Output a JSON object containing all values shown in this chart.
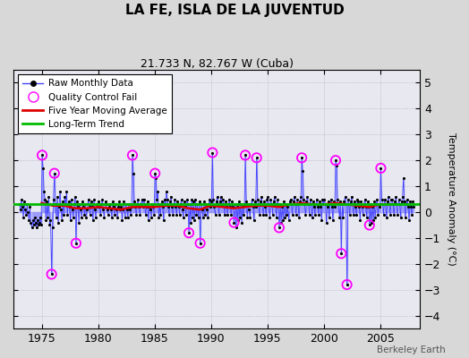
{
  "title": "LA FE, ISLA DE LA JUVENTUD",
  "subtitle": "21.733 N, 82.767 W (Cuba)",
  "ylabel": "Temperature Anomaly (°C)",
  "watermark": "Berkeley Earth",
  "ylim": [
    -4.5,
    5.5
  ],
  "xlim": [
    1972.5,
    2008.5
  ],
  "yticks": [
    -4,
    -3,
    -2,
    -1,
    0,
    1,
    2,
    3,
    4,
    5
  ],
  "xticks": [
    1975,
    1980,
    1985,
    1990,
    1995,
    2000,
    2005
  ],
  "bg_color": "#d8d8d8",
  "plot_bg": "#e8e8f0",
  "raw_color": "#4444ff",
  "raw_fill": "#8888ff",
  "qc_color": "#ff00ff",
  "ma_color": "#dd0000",
  "trend_color": "#00bb00",
  "raw_data": [
    [
      1973.04,
      0.3
    ],
    [
      1973.13,
      0.1
    ],
    [
      1973.21,
      0.5
    ],
    [
      1973.29,
      0.2
    ],
    [
      1973.38,
      -0.2
    ],
    [
      1973.46,
      0.4
    ],
    [
      1973.54,
      0.1
    ],
    [
      1973.63,
      -0.1
    ],
    [
      1973.71,
      0.3
    ],
    [
      1973.79,
      0.0
    ],
    [
      1973.88,
      -0.3
    ],
    [
      1973.96,
      0.2
    ],
    [
      1974.04,
      -0.4
    ],
    [
      1974.13,
      -0.6
    ],
    [
      1974.21,
      -0.3
    ],
    [
      1974.29,
      -0.5
    ],
    [
      1974.38,
      -0.2
    ],
    [
      1974.46,
      -0.4
    ],
    [
      1974.54,
      -0.6
    ],
    [
      1974.63,
      -0.3
    ],
    [
      1974.71,
      -0.5
    ],
    [
      1974.79,
      -0.4
    ],
    [
      1974.88,
      -0.2
    ],
    [
      1974.96,
      -0.5
    ],
    [
      1975.04,
      2.2
    ],
    [
      1975.13,
      1.7
    ],
    [
      1975.21,
      0.8
    ],
    [
      1975.29,
      0.5
    ],
    [
      1975.38,
      -0.3
    ],
    [
      1975.46,
      0.4
    ],
    [
      1975.54,
      -0.2
    ],
    [
      1975.63,
      0.6
    ],
    [
      1975.71,
      -0.5
    ],
    [
      1975.79,
      -0.3
    ],
    [
      1975.88,
      -2.4
    ],
    [
      1975.96,
      -0.6
    ],
    [
      1976.04,
      0.5
    ],
    [
      1976.13,
      1.5
    ],
    [
      1976.21,
      0.3
    ],
    [
      1976.29,
      -0.2
    ],
    [
      1976.38,
      0.6
    ],
    [
      1976.46,
      -0.4
    ],
    [
      1976.54,
      0.2
    ],
    [
      1976.63,
      0.8
    ],
    [
      1976.71,
      0.1
    ],
    [
      1976.79,
      -0.3
    ],
    [
      1976.88,
      0.4
    ],
    [
      1976.96,
      -0.1
    ],
    [
      1977.04,
      0.6
    ],
    [
      1977.13,
      0.3
    ],
    [
      1977.21,
      0.8
    ],
    [
      1977.29,
      -0.1
    ],
    [
      1977.38,
      0.4
    ],
    [
      1977.46,
      0.2
    ],
    [
      1977.54,
      -0.3
    ],
    [
      1977.63,
      0.5
    ],
    [
      1977.71,
      0.1
    ],
    [
      1977.79,
      -0.2
    ],
    [
      1977.88,
      0.3
    ],
    [
      1977.96,
      0.6
    ],
    [
      1978.04,
      -1.2
    ],
    [
      1978.13,
      0.4
    ],
    [
      1978.21,
      0.2
    ],
    [
      1978.29,
      -0.4
    ],
    [
      1978.38,
      0.3
    ],
    [
      1978.46,
      0.1
    ],
    [
      1978.54,
      -0.2
    ],
    [
      1978.63,
      0.4
    ],
    [
      1978.71,
      0.2
    ],
    [
      1978.79,
      -0.1
    ],
    [
      1978.88,
      0.3
    ],
    [
      1978.96,
      -0.2
    ],
    [
      1979.04,
      0.1
    ],
    [
      1979.13,
      0.5
    ],
    [
      1979.21,
      0.2
    ],
    [
      1979.29,
      -0.1
    ],
    [
      1979.38,
      0.4
    ],
    [
      1979.46,
      0.2
    ],
    [
      1979.54,
      -0.3
    ],
    [
      1979.63,
      0.5
    ],
    [
      1979.71,
      0.1
    ],
    [
      1979.79,
      -0.2
    ],
    [
      1979.88,
      0.3
    ],
    [
      1979.96,
      0.2
    ],
    [
      1980.04,
      0.4
    ],
    [
      1980.13,
      0.2
    ],
    [
      1980.21,
      -0.1
    ],
    [
      1980.29,
      0.3
    ],
    [
      1980.38,
      0.5
    ],
    [
      1980.46,
      0.1
    ],
    [
      1980.54,
      -0.2
    ],
    [
      1980.63,
      0.4
    ],
    [
      1980.71,
      0.3
    ],
    [
      1980.79,
      0.1
    ],
    [
      1980.88,
      -0.1
    ],
    [
      1980.96,
      0.2
    ],
    [
      1981.04,
      0.3
    ],
    [
      1981.13,
      0.1
    ],
    [
      1981.21,
      -0.2
    ],
    [
      1981.29,
      0.4
    ],
    [
      1981.38,
      0.2
    ],
    [
      1981.46,
      -0.1
    ],
    [
      1981.54,
      0.3
    ],
    [
      1981.63,
      0.1
    ],
    [
      1981.71,
      -0.2
    ],
    [
      1981.79,
      0.2
    ],
    [
      1981.88,
      0.4
    ],
    [
      1981.96,
      0.1
    ],
    [
      1982.04,
      0.2
    ],
    [
      1982.13,
      -0.3
    ],
    [
      1982.21,
      0.1
    ],
    [
      1982.29,
      0.4
    ],
    [
      1982.38,
      -0.2
    ],
    [
      1982.46,
      0.3
    ],
    [
      1982.54,
      0.1
    ],
    [
      1982.63,
      -0.2
    ],
    [
      1982.71,
      0.3
    ],
    [
      1982.79,
      0.1
    ],
    [
      1982.88,
      -0.1
    ],
    [
      1982.96,
      0.2
    ],
    [
      1983.04,
      2.2
    ],
    [
      1983.13,
      1.5
    ],
    [
      1983.21,
      0.4
    ],
    [
      1983.29,
      0.2
    ],
    [
      1983.38,
      -0.1
    ],
    [
      1983.46,
      0.3
    ],
    [
      1983.54,
      0.5
    ],
    [
      1983.63,
      0.2
    ],
    [
      1983.71,
      -0.1
    ],
    [
      1983.79,
      0.3
    ],
    [
      1983.88,
      0.5
    ],
    [
      1983.96,
      0.2
    ],
    [
      1984.04,
      0.5
    ],
    [
      1984.13,
      0.3
    ],
    [
      1984.21,
      -0.1
    ],
    [
      1984.29,
      0.2
    ],
    [
      1984.38,
      0.4
    ],
    [
      1984.46,
      -0.3
    ],
    [
      1984.54,
      0.2
    ],
    [
      1984.63,
      0.1
    ],
    [
      1984.71,
      -0.2
    ],
    [
      1984.79,
      0.3
    ],
    [
      1984.88,
      0.2
    ],
    [
      1984.96,
      -0.1
    ],
    [
      1985.04,
      1.5
    ],
    [
      1985.13,
      1.3
    ],
    [
      1985.21,
      0.5
    ],
    [
      1985.29,
      0.8
    ],
    [
      1985.38,
      -0.2
    ],
    [
      1985.46,
      0.3
    ],
    [
      1985.54,
      -0.1
    ],
    [
      1985.63,
      0.4
    ],
    [
      1985.71,
      0.2
    ],
    [
      1985.79,
      -0.3
    ],
    [
      1985.88,
      0.5
    ],
    [
      1985.96,
      0.3
    ],
    [
      1986.04,
      0.8
    ],
    [
      1986.13,
      0.5
    ],
    [
      1986.21,
      0.2
    ],
    [
      1986.29,
      -0.1
    ],
    [
      1986.38,
      0.4
    ],
    [
      1986.46,
      0.6
    ],
    [
      1986.54,
      0.2
    ],
    [
      1986.63,
      -0.1
    ],
    [
      1986.71,
      0.3
    ],
    [
      1986.79,
      0.5
    ],
    [
      1986.88,
      0.2
    ],
    [
      1986.96,
      -0.1
    ],
    [
      1987.04,
      0.4
    ],
    [
      1987.13,
      0.2
    ],
    [
      1987.21,
      -0.1
    ],
    [
      1987.29,
      0.3
    ],
    [
      1987.38,
      0.5
    ],
    [
      1987.46,
      0.1
    ],
    [
      1987.54,
      -0.2
    ],
    [
      1987.63,
      0.4
    ],
    [
      1987.71,
      0.2
    ],
    [
      1987.79,
      -0.1
    ],
    [
      1987.88,
      0.5
    ],
    [
      1987.96,
      0.3
    ],
    [
      1988.04,
      -0.8
    ],
    [
      1988.13,
      0.3
    ],
    [
      1988.21,
      -0.4
    ],
    [
      1988.29,
      0.5
    ],
    [
      1988.38,
      -0.2
    ],
    [
      1988.46,
      0.4
    ],
    [
      1988.54,
      -0.3
    ],
    [
      1988.63,
      0.5
    ],
    [
      1988.71,
      -0.1
    ],
    [
      1988.79,
      0.3
    ],
    [
      1988.88,
      -0.2
    ],
    [
      1988.96,
      0.4
    ],
    [
      1989.04,
      -1.2
    ],
    [
      1989.13,
      0.3
    ],
    [
      1989.21,
      0.1
    ],
    [
      1989.29,
      -0.2
    ],
    [
      1989.38,
      0.4
    ],
    [
      1989.46,
      -0.1
    ],
    [
      1989.54,
      0.3
    ],
    [
      1989.63,
      0.1
    ],
    [
      1989.71,
      -0.2
    ],
    [
      1989.79,
      0.3
    ],
    [
      1989.88,
      0.5
    ],
    [
      1989.96,
      0.2
    ],
    [
      1990.04,
      0.4
    ],
    [
      1990.13,
      2.3
    ],
    [
      1990.21,
      0.5
    ],
    [
      1990.29,
      0.2
    ],
    [
      1990.38,
      -0.1
    ],
    [
      1990.46,
      0.4
    ],
    [
      1990.54,
      0.6
    ],
    [
      1990.63,
      0.3
    ],
    [
      1990.71,
      -0.1
    ],
    [
      1990.79,
      0.4
    ],
    [
      1990.88,
      0.6
    ],
    [
      1990.96,
      0.3
    ],
    [
      1991.04,
      0.5
    ],
    [
      1991.13,
      0.3
    ],
    [
      1991.21,
      -0.1
    ],
    [
      1991.29,
      0.4
    ],
    [
      1991.38,
      0.2
    ],
    [
      1991.46,
      -0.1
    ],
    [
      1991.54,
      0.3
    ],
    [
      1991.63,
      0.5
    ],
    [
      1991.71,
      0.2
    ],
    [
      1991.79,
      -0.1
    ],
    [
      1991.88,
      0.4
    ],
    [
      1991.96,
      0.2
    ],
    [
      1992.04,
      -0.4
    ],
    [
      1992.13,
      0.3
    ],
    [
      1992.21,
      -0.6
    ],
    [
      1992.29,
      0.2
    ],
    [
      1992.38,
      -0.3
    ],
    [
      1992.46,
      0.4
    ],
    [
      1992.54,
      -0.2
    ],
    [
      1992.63,
      0.3
    ],
    [
      1992.71,
      -0.4
    ],
    [
      1992.79,
      0.2
    ],
    [
      1992.88,
      -0.1
    ],
    [
      1992.96,
      0.3
    ],
    [
      1993.04,
      2.2
    ],
    [
      1993.13,
      0.4
    ],
    [
      1993.21,
      -0.2
    ],
    [
      1993.29,
      0.3
    ],
    [
      1993.38,
      0.1
    ],
    [
      1993.46,
      -0.2
    ],
    [
      1993.54,
      0.3
    ],
    [
      1993.63,
      0.5
    ],
    [
      1993.71,
      0.2
    ],
    [
      1993.79,
      -0.3
    ],
    [
      1993.88,
      0.4
    ],
    [
      1993.96,
      0.2
    ],
    [
      1994.04,
      2.1
    ],
    [
      1994.13,
      0.5
    ],
    [
      1994.21,
      0.3
    ],
    [
      1994.29,
      -0.1
    ],
    [
      1994.38,
      0.4
    ],
    [
      1994.46,
      0.6
    ],
    [
      1994.54,
      0.3
    ],
    [
      1994.63,
      -0.1
    ],
    [
      1994.71,
      0.4
    ],
    [
      1994.79,
      0.2
    ],
    [
      1994.88,
      -0.1
    ],
    [
      1994.96,
      0.5
    ],
    [
      1995.04,
      0.6
    ],
    [
      1995.13,
      0.3
    ],
    [
      1995.21,
      -0.2
    ],
    [
      1995.29,
      0.5
    ],
    [
      1995.38,
      0.3
    ],
    [
      1995.46,
      -0.1
    ],
    [
      1995.54,
      0.4
    ],
    [
      1995.63,
      0.6
    ],
    [
      1995.71,
      0.3
    ],
    [
      1995.79,
      -0.2
    ],
    [
      1995.88,
      0.5
    ],
    [
      1995.96,
      0.3
    ],
    [
      1996.04,
      -0.6
    ],
    [
      1996.13,
      0.3
    ],
    [
      1996.21,
      -0.4
    ],
    [
      1996.29,
      0.2
    ],
    [
      1996.38,
      -0.3
    ],
    [
      1996.46,
      0.4
    ],
    [
      1996.54,
      -0.2
    ],
    [
      1996.63,
      0.3
    ],
    [
      1996.71,
      -0.1
    ],
    [
      1996.79,
      0.2
    ],
    [
      1996.88,
      -0.3
    ],
    [
      1996.96,
      0.4
    ],
    [
      1997.04,
      0.5
    ],
    [
      1997.13,
      0.3
    ],
    [
      1997.21,
      -0.1
    ],
    [
      1997.29,
      0.4
    ],
    [
      1997.38,
      0.6
    ],
    [
      1997.46,
      0.3
    ],
    [
      1997.54,
      -0.1
    ],
    [
      1997.63,
      0.5
    ],
    [
      1997.71,
      0.3
    ],
    [
      1997.79,
      -0.2
    ],
    [
      1997.88,
      0.4
    ],
    [
      1997.96,
      0.6
    ],
    [
      1998.04,
      2.1
    ],
    [
      1998.13,
      1.6
    ],
    [
      1998.21,
      0.5
    ],
    [
      1998.29,
      0.3
    ],
    [
      1998.38,
      -0.1
    ],
    [
      1998.46,
      0.4
    ],
    [
      1998.54,
      0.6
    ],
    [
      1998.63,
      0.3
    ],
    [
      1998.71,
      -0.1
    ],
    [
      1998.79,
      0.5
    ],
    [
      1998.88,
      0.3
    ],
    [
      1998.96,
      -0.2
    ],
    [
      1999.04,
      0.4
    ],
    [
      1999.13,
      0.2
    ],
    [
      1999.21,
      -0.1
    ],
    [
      1999.29,
      0.3
    ],
    [
      1999.38,
      0.5
    ],
    [
      1999.46,
      0.2
    ],
    [
      1999.54,
      -0.1
    ],
    [
      1999.63,
      0.4
    ],
    [
      1999.71,
      0.2
    ],
    [
      1999.79,
      -0.3
    ],
    [
      1999.88,
      0.5
    ],
    [
      1999.96,
      0.3
    ],
    [
      2000.04,
      0.5
    ],
    [
      2000.13,
      0.3
    ],
    [
      2000.21,
      -0.4
    ],
    [
      2000.29,
      0.2
    ],
    [
      2000.38,
      0.4
    ],
    [
      2000.46,
      -0.2
    ],
    [
      2000.54,
      0.3
    ],
    [
      2000.63,
      0.5
    ],
    [
      2000.71,
      0.2
    ],
    [
      2000.79,
      -0.3
    ],
    [
      2000.88,
      0.4
    ],
    [
      2000.96,
      0.2
    ],
    [
      2001.04,
      2.0
    ],
    [
      2001.13,
      1.8
    ],
    [
      2001.21,
      0.5
    ],
    [
      2001.29,
      0.3
    ],
    [
      2001.38,
      -0.2
    ],
    [
      2001.46,
      0.4
    ],
    [
      2001.54,
      -1.6
    ],
    [
      2001.63,
      0.3
    ],
    [
      2001.71,
      -0.2
    ],
    [
      2001.79,
      0.4
    ],
    [
      2001.88,
      0.6
    ],
    [
      2001.96,
      0.3
    ],
    [
      2002.04,
      -2.8
    ],
    [
      2002.13,
      0.5
    ],
    [
      2002.21,
      0.3
    ],
    [
      2002.29,
      -0.1
    ],
    [
      2002.38,
      0.4
    ],
    [
      2002.46,
      0.6
    ],
    [
      2002.54,
      0.3
    ],
    [
      2002.63,
      -0.1
    ],
    [
      2002.71,
      0.4
    ],
    [
      2002.79,
      0.2
    ],
    [
      2002.88,
      -0.1
    ],
    [
      2002.96,
      0.5
    ],
    [
      2003.04,
      0.4
    ],
    [
      2003.13,
      0.2
    ],
    [
      2003.21,
      -0.3
    ],
    [
      2003.29,
      0.4
    ],
    [
      2003.38,
      0.2
    ],
    [
      2003.46,
      -0.1
    ],
    [
      2003.54,
      0.3
    ],
    [
      2003.63,
      0.5
    ],
    [
      2003.71,
      0.2
    ],
    [
      2003.79,
      -0.2
    ],
    [
      2003.88,
      0.4
    ],
    [
      2003.96,
      0.2
    ],
    [
      2004.04,
      -0.5
    ],
    [
      2004.13,
      0.3
    ],
    [
      2004.21,
      -0.4
    ],
    [
      2004.29,
      0.2
    ],
    [
      2004.38,
      -0.3
    ],
    [
      2004.46,
      0.4
    ],
    [
      2004.54,
      -0.2
    ],
    [
      2004.63,
      0.3
    ],
    [
      2004.71,
      0.5
    ],
    [
      2004.79,
      -0.1
    ],
    [
      2004.88,
      0.3
    ],
    [
      2004.96,
      0.2
    ],
    [
      2005.04,
      1.7
    ],
    [
      2005.13,
      0.5
    ],
    [
      2005.21,
      0.3
    ],
    [
      2005.29,
      -0.1
    ],
    [
      2005.38,
      0.5
    ],
    [
      2005.46,
      0.3
    ],
    [
      2005.54,
      -0.2
    ],
    [
      2005.63,
      0.4
    ],
    [
      2005.71,
      0.6
    ],
    [
      2005.79,
      0.3
    ],
    [
      2005.88,
      -0.1
    ],
    [
      2005.96,
      0.5
    ],
    [
      2006.04,
      0.5
    ],
    [
      2006.13,
      0.3
    ],
    [
      2006.21,
      -0.1
    ],
    [
      2006.29,
      0.4
    ],
    [
      2006.38,
      0.6
    ],
    [
      2006.46,
      0.3
    ],
    [
      2006.54,
      -0.1
    ],
    [
      2006.63,
      0.5
    ],
    [
      2006.71,
      0.3
    ],
    [
      2006.79,
      -0.2
    ],
    [
      2006.88,
      0.4
    ],
    [
      2006.96,
      0.6
    ],
    [
      2007.04,
      1.3
    ],
    [
      2007.13,
      0.4
    ],
    [
      2007.21,
      -0.2
    ],
    [
      2007.29,
      0.3
    ],
    [
      2007.38,
      0.5
    ],
    [
      2007.46,
      0.2
    ],
    [
      2007.54,
      -0.3
    ],
    [
      2007.63,
      0.4
    ],
    [
      2007.71,
      0.2
    ],
    [
      2007.79,
      -0.1
    ],
    [
      2007.88,
      0.4
    ],
    [
      2007.96,
      0.2
    ]
  ],
  "qc_fail_points": [
    [
      1975.04,
      2.2
    ],
    [
      1975.88,
      -2.4
    ],
    [
      1976.13,
      1.5
    ],
    [
      1978.04,
      -1.2
    ],
    [
      1983.04,
      2.2
    ],
    [
      1985.04,
      1.5
    ],
    [
      1988.04,
      -0.8
    ],
    [
      1989.04,
      -1.2
    ],
    [
      1990.13,
      2.3
    ],
    [
      1992.04,
      -0.4
    ],
    [
      1993.04,
      2.2
    ],
    [
      1994.04,
      2.1
    ],
    [
      1996.04,
      -0.6
    ],
    [
      1998.04,
      2.1
    ],
    [
      2001.04,
      2.0
    ],
    [
      2001.54,
      -1.6
    ],
    [
      2002.04,
      -2.8
    ],
    [
      2004.04,
      -0.5
    ],
    [
      2005.04,
      1.7
    ]
  ],
  "moving_avg_x": [
    1975,
    1976,
    1977,
    1978,
    1979,
    1980,
    1981,
    1982,
    1983,
    1984,
    1985,
    1986,
    1987,
    1988,
    1989,
    1990,
    1991,
    1992,
    1993,
    1994,
    1995,
    1996,
    1997,
    1998,
    1999,
    2000,
    2001,
    2002,
    2003,
    2004,
    2005,
    2006
  ],
  "moving_avg_y": [
    0.35,
    0.25,
    0.25,
    0.15,
    0.15,
    0.2,
    0.15,
    0.1,
    0.2,
    0.2,
    0.2,
    0.25,
    0.25,
    0.15,
    0.1,
    0.25,
    0.2,
    0.15,
    0.2,
    0.25,
    0.25,
    0.2,
    0.3,
    0.35,
    0.3,
    0.3,
    0.35,
    0.3,
    0.25,
    0.2,
    0.3,
    0.3
  ],
  "trend_x": [
    1972.5,
    2008.5
  ],
  "trend_y": [
    0.3,
    0.3
  ]
}
